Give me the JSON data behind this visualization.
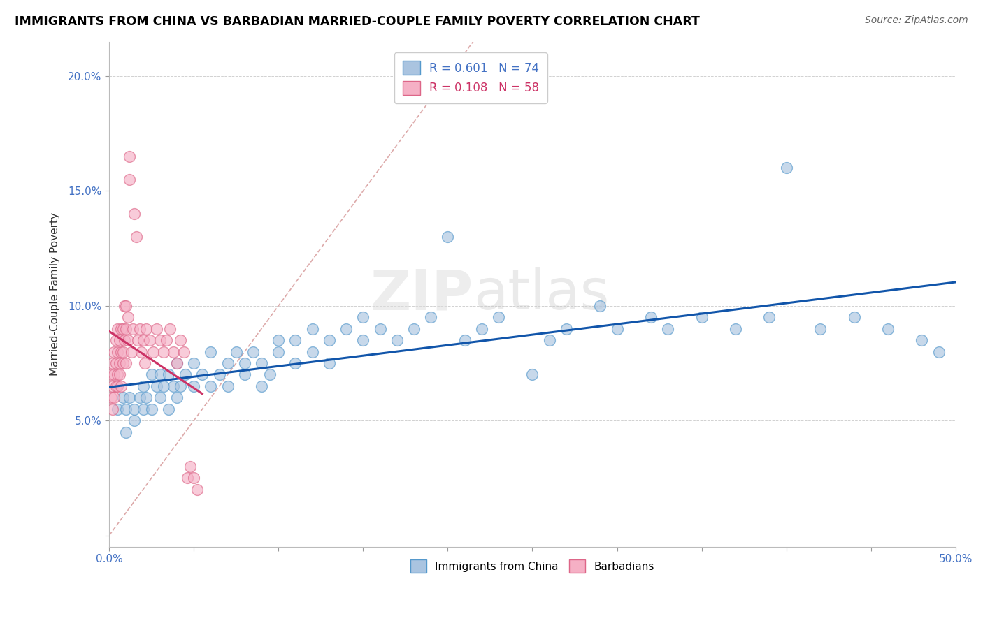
{
  "title": "IMMIGRANTS FROM CHINA VS BARBADIAN MARRIED-COUPLE FAMILY POVERTY CORRELATION CHART",
  "source": "Source: ZipAtlas.com",
  "ylabel": "Married-Couple Family Poverty",
  "xlim": [
    0,
    0.5
  ],
  "ylim": [
    -0.005,
    0.215
  ],
  "xticks": [
    0.0,
    0.05,
    0.1,
    0.15,
    0.2,
    0.25,
    0.3,
    0.35,
    0.4,
    0.45,
    0.5
  ],
  "xticklabels": [
    "0.0%",
    "",
    "",
    "",
    "",
    "",
    "",
    "",
    "",
    "",
    "50.0%"
  ],
  "yticks": [
    0.0,
    0.05,
    0.1,
    0.15,
    0.2
  ],
  "yticklabels": [
    "",
    "5.0%",
    "10.0%",
    "15.0%",
    "20.0%"
  ],
  "china_color": "#aac4e0",
  "china_edge_color": "#5599cc",
  "barbados_color": "#f5b0c5",
  "barbados_edge_color": "#dd6688",
  "line_china_color": "#1155aa",
  "line_barbados_color": "#cc3366",
  "diagonal_color": "#ddaaaa",
  "R_china": 0.601,
  "N_china": 74,
  "R_barbados": 0.108,
  "N_barbados": 58,
  "legend_label_china": "Immigrants from China",
  "legend_label_barbados": "Barbadians",
  "china_x": [
    0.005,
    0.008,
    0.01,
    0.01,
    0.012,
    0.015,
    0.015,
    0.018,
    0.02,
    0.02,
    0.022,
    0.025,
    0.025,
    0.028,
    0.03,
    0.03,
    0.032,
    0.035,
    0.035,
    0.038,
    0.04,
    0.04,
    0.042,
    0.045,
    0.05,
    0.05,
    0.055,
    0.06,
    0.06,
    0.065,
    0.07,
    0.07,
    0.075,
    0.08,
    0.08,
    0.085,
    0.09,
    0.09,
    0.095,
    0.1,
    0.1,
    0.11,
    0.11,
    0.12,
    0.12,
    0.13,
    0.13,
    0.14,
    0.15,
    0.15,
    0.16,
    0.17,
    0.18,
    0.19,
    0.2,
    0.21,
    0.22,
    0.23,
    0.25,
    0.26,
    0.27,
    0.29,
    0.3,
    0.32,
    0.33,
    0.35,
    0.37,
    0.39,
    0.4,
    0.42,
    0.44,
    0.46,
    0.48,
    0.49
  ],
  "china_y": [
    0.055,
    0.06,
    0.055,
    0.045,
    0.06,
    0.055,
    0.05,
    0.06,
    0.055,
    0.065,
    0.06,
    0.055,
    0.07,
    0.065,
    0.06,
    0.07,
    0.065,
    0.055,
    0.07,
    0.065,
    0.06,
    0.075,
    0.065,
    0.07,
    0.065,
    0.075,
    0.07,
    0.065,
    0.08,
    0.07,
    0.075,
    0.065,
    0.08,
    0.07,
    0.075,
    0.08,
    0.065,
    0.075,
    0.07,
    0.08,
    0.085,
    0.075,
    0.085,
    0.08,
    0.09,
    0.085,
    0.075,
    0.09,
    0.085,
    0.095,
    0.09,
    0.085,
    0.09,
    0.095,
    0.13,
    0.085,
    0.09,
    0.095,
    0.07,
    0.085,
    0.09,
    0.1,
    0.09,
    0.095,
    0.09,
    0.095,
    0.09,
    0.095,
    0.16,
    0.09,
    0.095,
    0.09,
    0.085,
    0.08
  ],
  "barbados_x": [
    0.001,
    0.001,
    0.002,
    0.002,
    0.002,
    0.003,
    0.003,
    0.003,
    0.004,
    0.004,
    0.004,
    0.005,
    0.005,
    0.005,
    0.005,
    0.006,
    0.006,
    0.006,
    0.007,
    0.007,
    0.007,
    0.008,
    0.008,
    0.008,
    0.009,
    0.009,
    0.01,
    0.01,
    0.01,
    0.011,
    0.011,
    0.012,
    0.012,
    0.013,
    0.014,
    0.015,
    0.016,
    0.017,
    0.018,
    0.019,
    0.02,
    0.021,
    0.022,
    0.024,
    0.026,
    0.028,
    0.03,
    0.032,
    0.034,
    0.036,
    0.038,
    0.04,
    0.042,
    0.044,
    0.046,
    0.048,
    0.05,
    0.052
  ],
  "barbados_y": [
    0.07,
    0.06,
    0.065,
    0.075,
    0.055,
    0.07,
    0.08,
    0.06,
    0.065,
    0.075,
    0.085,
    0.07,
    0.08,
    0.09,
    0.065,
    0.075,
    0.085,
    0.07,
    0.08,
    0.09,
    0.065,
    0.08,
    0.09,
    0.075,
    0.085,
    0.1,
    0.09,
    0.1,
    0.075,
    0.085,
    0.095,
    0.165,
    0.155,
    0.08,
    0.09,
    0.14,
    0.13,
    0.085,
    0.09,
    0.08,
    0.085,
    0.075,
    0.09,
    0.085,
    0.08,
    0.09,
    0.085,
    0.08,
    0.085,
    0.09,
    0.08,
    0.075,
    0.085,
    0.08,
    0.025,
    0.03,
    0.025,
    0.02
  ]
}
